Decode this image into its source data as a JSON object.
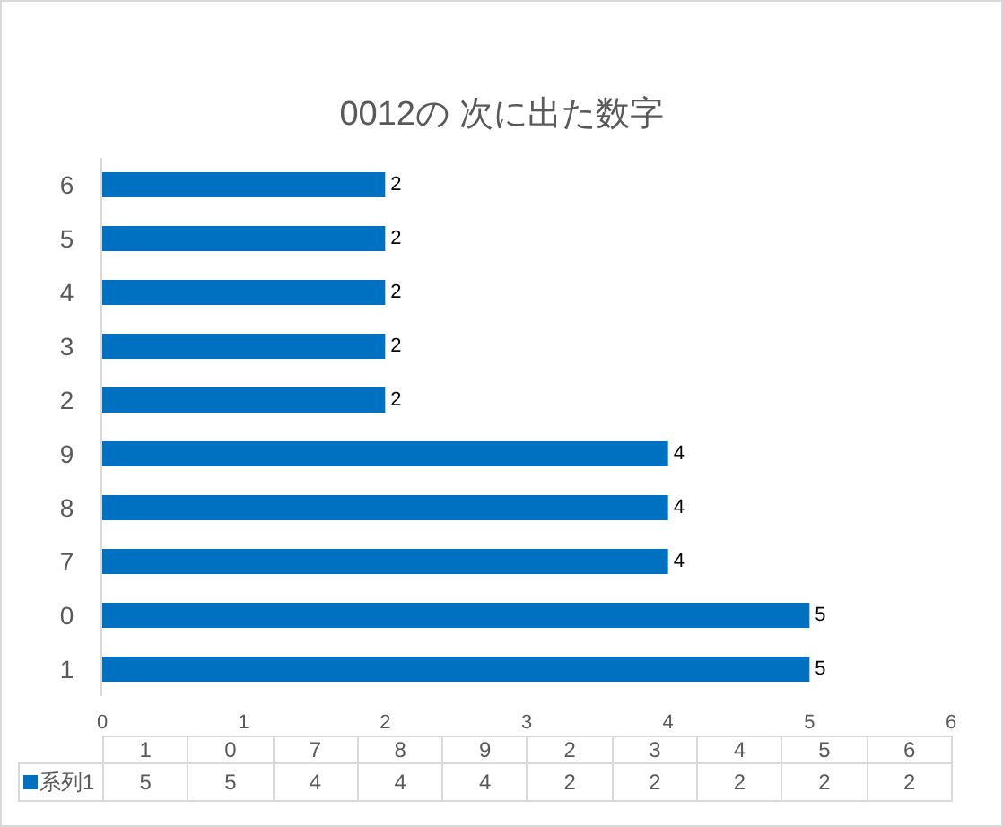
{
  "chart_data": {
    "type": "bar",
    "orientation": "horizontal",
    "title": "0012の 次に出た数字",
    "categories": [
      "6",
      "5",
      "4",
      "3",
      "2",
      "9",
      "8",
      "7",
      "0",
      "1"
    ],
    "series": [
      {
        "name": "系列1",
        "color": "#0070c0",
        "values": [
          2,
          2,
          2,
          2,
          2,
          4,
          4,
          4,
          5,
          5
        ]
      }
    ],
    "xlim": [
      0,
      6
    ],
    "xticks": [
      0,
      1,
      2,
      3,
      4,
      5,
      6
    ],
    "data_labels": true,
    "legend": "bottom left"
  }
}
